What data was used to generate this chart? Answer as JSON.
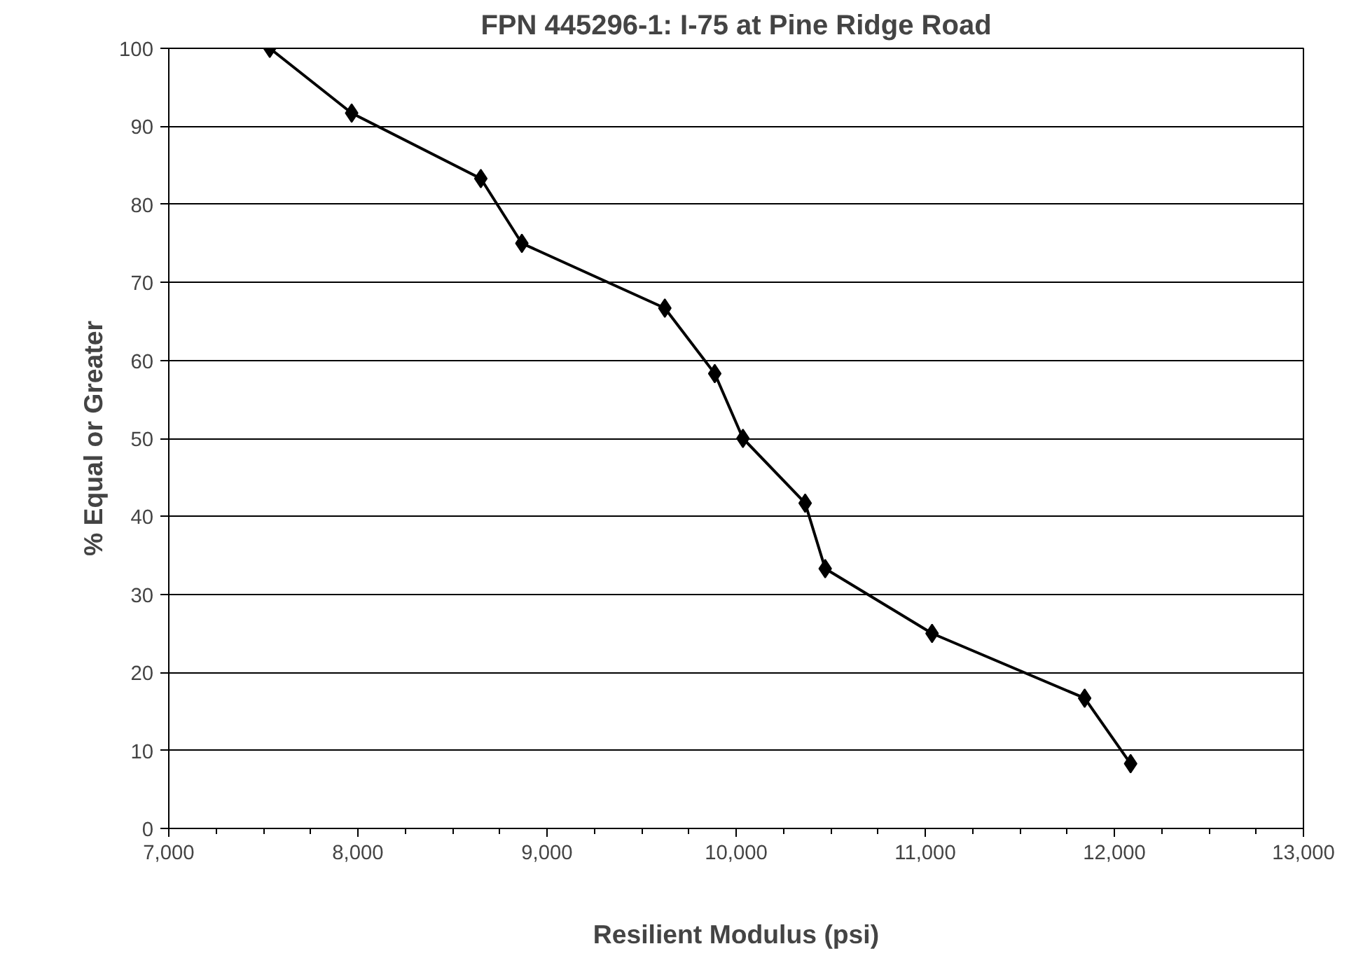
{
  "chart_data": {
    "type": "line",
    "title": "FPN 445296-1: I-75 at Pine Ridge Road",
    "xlabel": "Resilient Modulus (psi)",
    "ylabel": "% Equal or Greater",
    "x": [
      7534,
      7967,
      8650,
      8867,
      9623,
      9887,
      10036,
      10365,
      10471,
      11036,
      11843,
      12086
    ],
    "series": [
      {
        "color": "#000000",
        "values": [
          100,
          91.7,
          83.3,
          75,
          66.7,
          58.3,
          50,
          41.7,
          33.3,
          25,
          16.7,
          8.3
        ]
      }
    ],
    "xlim": [
      7000,
      13000
    ],
    "ylim": [
      0,
      100
    ],
    "xticks": [
      {
        "value": 7000,
        "label": "7,000"
      },
      {
        "value": 8000,
        "label": "8,000"
      },
      {
        "value": 9000,
        "label": "9,000"
      },
      {
        "value": 10000,
        "label": "10,000"
      },
      {
        "value": 11000,
        "label": "11,000"
      },
      {
        "value": 12000,
        "label": "12,000"
      },
      {
        "value": 13000,
        "label": "13,000"
      }
    ],
    "yticks": [
      0,
      10,
      20,
      30,
      40,
      50,
      60,
      70,
      80,
      90,
      100
    ],
    "grid": "y",
    "marker": "diamond",
    "line_style": "solid"
  }
}
